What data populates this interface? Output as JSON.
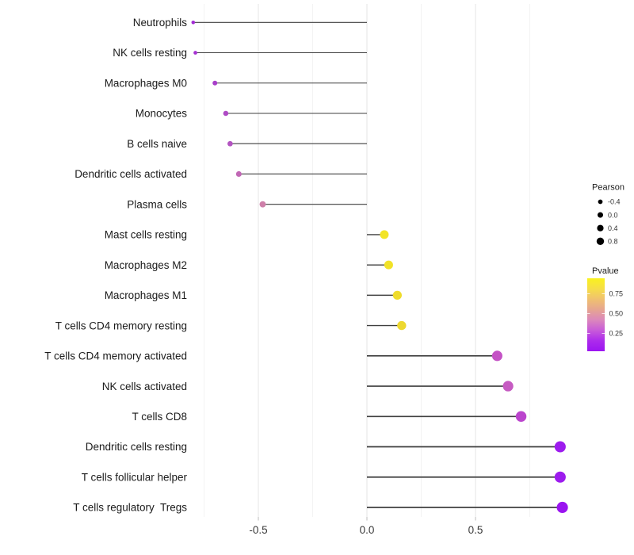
{
  "chart_data": {
    "type": "lollipop",
    "title": "",
    "xlabel": "",
    "ylabel": "",
    "xlim": [
      -0.87,
      0.97
    ],
    "grid": "vertical major and minor gridlines, light gray, white background",
    "legend_position": "right",
    "categories": [
      "Neutrophils",
      "NK cells resting",
      "Macrophages M0",
      "Monocytes",
      "B cells naive",
      "Dendritic cells activated",
      "Plasma cells",
      "Mast cells resting",
      "Macrophages M2",
      "Macrophages M1",
      "T cells CD4 memory resting",
      "T cells CD4 memory activated",
      "NK cells activated",
      "T cells CD8",
      "Dendritic cells resting",
      "T cells follicular helper",
      "T cells regulatory  Tregs"
    ],
    "points": [
      {
        "category": "Neutrophils",
        "pearson": -0.8,
        "pvalue": 0.07,
        "color": "#A32CD4"
      },
      {
        "category": "NK cells resting",
        "pearson": -0.79,
        "pvalue": 0.08,
        "color": "#A632D2"
      },
      {
        "category": "Macrophages M0",
        "pearson": -0.7,
        "pvalue": 0.15,
        "color": "#A83FC9"
      },
      {
        "category": "Monocytes",
        "pearson": -0.65,
        "pvalue": 0.19,
        "color": "#AF4BC5"
      },
      {
        "category": "B cells naive",
        "pearson": -0.63,
        "pvalue": 0.22,
        "color": "#B354C1"
      },
      {
        "category": "Dendritic cells activated",
        "pearson": -0.59,
        "pvalue": 0.3,
        "color": "#C167B5"
      },
      {
        "category": "Plasma cells",
        "pearson": -0.48,
        "pvalue": 0.42,
        "color": "#CE7FA9"
      },
      {
        "category": "Mast cells resting",
        "pearson": 0.08,
        "pvalue": 0.85,
        "color": "#F2E426"
      },
      {
        "category": "Macrophages M2",
        "pearson": 0.1,
        "pvalue": 0.82,
        "color": "#F1E228"
      },
      {
        "category": "Macrophages M1",
        "pearson": 0.14,
        "pvalue": 0.78,
        "color": "#EFDC2C"
      },
      {
        "category": "T cells CD4 memory resting",
        "pearson": 0.16,
        "pvalue": 0.75,
        "color": "#EDD830"
      },
      {
        "category": "T cells CD4 memory activated",
        "pearson": 0.6,
        "pvalue": 0.3,
        "color": "#C452C5"
      },
      {
        "category": "NK cells activated",
        "pearson": 0.65,
        "pvalue": 0.28,
        "color": "#C65BC2"
      },
      {
        "category": "T cells CD8",
        "pearson": 0.71,
        "pvalue": 0.22,
        "color": "#BB44CD"
      },
      {
        "category": "Dendritic cells resting",
        "pearson": 0.89,
        "pvalue": 0.05,
        "color": "#9D1CEE"
      },
      {
        "category": "T cells follicular helper",
        "pearson": 0.89,
        "pvalue": 0.05,
        "color": "#9D1CEE"
      },
      {
        "category": "T cells regulatory  Tregs",
        "pearson": 0.9,
        "pvalue": 0.04,
        "color": "#9A14F0"
      }
    ],
    "x_axis": {
      "major_ticks": [
        -0.5,
        0.0,
        0.5
      ],
      "major_tick_labels": [
        "-0.5",
        "0.0",
        "0.5"
      ],
      "minor_gridlines": [
        -0.75,
        -0.25,
        0.25,
        0.75
      ]
    },
    "legend": {
      "size": {
        "title": "Pearson",
        "entries": [
          {
            "label": "-0.4",
            "value": -0.4
          },
          {
            "label": "0.0",
            "value": 0.0
          },
          {
            "label": "0.4",
            "value": 0.4
          },
          {
            "label": "0.8",
            "value": 0.8
          }
        ]
      },
      "color": {
        "title": "Pvalue",
        "tick_labels": [
          "0.75",
          "0.50",
          "0.25"
        ],
        "tick_values": [
          0.75,
          0.5,
          0.25
        ],
        "value_range_bottom_to_top": [
          0.02,
          0.94
        ],
        "gradient_top_to_bottom": [
          "#F9F21E",
          "#F6DE48",
          "#F0C16F",
          "#E6A591",
          "#DB87BC",
          "#C85BD9",
          "#AC2BEC",
          "#9C15F1"
        ]
      }
    },
    "colors": {
      "stem": "#3f3f3f",
      "legend_dot": "#000000",
      "gridline_major": "#e4e4e4",
      "gridline_minor": "#f3f3f3",
      "axis_tick": "#bdbdbd",
      "label_text": "#1b1b1b",
      "axis_text": "#383838"
    }
  }
}
